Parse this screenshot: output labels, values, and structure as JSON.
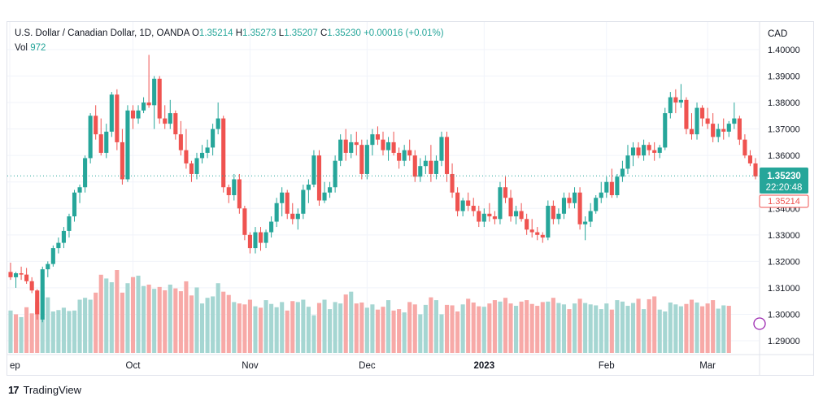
{
  "legend": {
    "symbol": "U.S. Dollar / Canadian Dollar, 1D, OANDA",
    "o_label": "O",
    "o_value": "1.35214",
    "h_label": "H",
    "h_value": "1.35273",
    "l_label": "L",
    "l_value": "1.35207",
    "c_label": "C",
    "c_value": "1.35230",
    "change": "+0.00016 (+0.01%)",
    "vol_label": "Vol",
    "vol_value": "972"
  },
  "axis": {
    "currency": "CAD",
    "price_ticks": [
      "1.40000",
      "1.39000",
      "1.38000",
      "1.37000",
      "1.36000",
      "1.35000",
      "1.34000",
      "1.33000",
      "1.32000",
      "1.31000",
      "1.30000",
      "1.29000"
    ],
    "time_labels": [
      "ep",
      "Oct",
      "Nov",
      "Dec",
      "2023",
      "Feb",
      "Mar"
    ]
  },
  "badges": {
    "last_price": "1.35230",
    "countdown": "22:20:48",
    "open_price": "1.35214"
  },
  "footer": {
    "brand": "TradingView",
    "logo_text": "17"
  },
  "colors": {
    "up": "#26a69a",
    "down": "#ef5350",
    "vol_up": "#a5d6d2",
    "vol_down": "#f7a9a7",
    "grid": "#f0f3fa"
  },
  "chart_data": {
    "type": "candlestick",
    "symbol": "USDCAD",
    "interval": "1D",
    "ylim": [
      1.285,
      1.405
    ],
    "y_ticks": [
      1.4,
      1.39,
      1.38,
      1.37,
      1.36,
      1.35,
      1.34,
      1.33,
      1.32,
      1.31,
      1.3,
      1.29
    ],
    "x_ticks": [
      {
        "label": "ep",
        "index": 0
      },
      {
        "label": "Oct",
        "index": 23
      },
      {
        "label": "Nov",
        "index": 45
      },
      {
        "label": "Dec",
        "index": 67
      },
      {
        "label": "2023",
        "index": 89
      },
      {
        "label": "Feb",
        "index": 112
      },
      {
        "label": "Mar",
        "index": 131
      }
    ],
    "last_close": 1.3523,
    "open_today": 1.35214,
    "candles": [
      [
        1.316,
        1.3195,
        1.313,
        1.314
      ],
      [
        1.314,
        1.316,
        1.31,
        1.3155
      ],
      [
        1.3155,
        1.318,
        1.313,
        1.315
      ],
      [
        1.315,
        1.3175,
        1.3115,
        1.3125
      ],
      [
        1.3125,
        1.314,
        1.308,
        1.309
      ],
      [
        1.309,
        1.3095,
        1.298,
        1.3
      ],
      [
        1.298,
        1.318,
        1.297,
        1.317
      ],
      [
        1.317,
        1.32,
        1.314,
        1.319
      ],
      [
        1.319,
        1.326,
        1.318,
        1.325
      ],
      [
        1.325,
        1.329,
        1.323,
        1.327
      ],
      [
        1.327,
        1.333,
        1.325,
        1.3315
      ],
      [
        1.3315,
        1.338,
        1.329,
        1.337
      ],
      [
        1.337,
        1.347,
        1.335,
        1.346
      ],
      [
        1.346,
        1.349,
        1.342,
        1.348
      ],
      [
        1.348,
        1.36,
        1.346,
        1.359
      ],
      [
        1.359,
        1.376,
        1.357,
        1.375
      ],
      [
        1.375,
        1.379,
        1.366,
        1.368
      ],
      [
        1.368,
        1.374,
        1.36,
        1.361
      ],
      [
        1.361,
        1.372,
        1.359,
        1.369
      ],
      [
        1.369,
        1.384,
        1.367,
        1.383
      ],
      [
        1.383,
        1.385,
        1.362,
        1.365
      ],
      [
        1.365,
        1.37,
        1.349,
        1.351
      ],
      [
        1.351,
        1.379,
        1.35,
        1.377
      ],
      [
        1.377,
        1.379,
        1.37,
        1.374
      ],
      [
        1.374,
        1.379,
        1.372,
        1.377
      ],
      [
        1.377,
        1.382,
        1.376,
        1.38
      ],
      [
        1.38,
        1.398,
        1.378,
        1.379
      ],
      [
        1.379,
        1.39,
        1.37,
        1.389
      ],
      [
        1.389,
        1.39,
        1.372,
        1.374
      ],
      [
        1.374,
        1.379,
        1.37,
        1.372
      ],
      [
        1.372,
        1.381,
        1.37,
        1.376
      ],
      [
        1.376,
        1.377,
        1.366,
        1.368
      ],
      [
        1.368,
        1.373,
        1.36,
        1.362
      ],
      [
        1.362,
        1.37,
        1.355,
        1.357
      ],
      [
        1.357,
        1.358,
        1.35,
        1.353
      ],
      [
        1.353,
        1.361,
        1.351,
        1.359
      ],
      [
        1.359,
        1.364,
        1.357,
        1.361
      ],
      [
        1.361,
        1.366,
        1.359,
        1.363
      ],
      [
        1.363,
        1.372,
        1.36,
        1.37
      ],
      [
        1.37,
        1.38,
        1.368,
        1.374
      ],
      [
        1.374,
        1.375,
        1.346,
        1.348
      ],
      [
        1.348,
        1.349,
        1.342,
        1.345
      ],
      [
        1.345,
        1.353,
        1.343,
        1.351
      ],
      [
        1.351,
        1.353,
        1.338,
        1.34
      ],
      [
        1.34,
        1.341,
        1.328,
        1.33
      ],
      [
        1.33,
        1.331,
        1.323,
        1.325
      ],
      [
        1.325,
        1.333,
        1.323,
        1.331
      ],
      [
        1.331,
        1.333,
        1.324,
        1.327
      ],
      [
        1.327,
        1.332,
        1.325,
        1.331
      ],
      [
        1.331,
        1.337,
        1.329,
        1.335
      ],
      [
        1.335,
        1.344,
        1.333,
        1.342
      ],
      [
        1.342,
        1.348,
        1.337,
        1.346
      ],
      [
        1.346,
        1.347,
        1.336,
        1.338
      ],
      [
        1.338,
        1.342,
        1.334,
        1.336
      ],
      [
        1.336,
        1.34,
        1.332,
        1.338
      ],
      [
        1.338,
        1.349,
        1.336,
        1.347
      ],
      [
        1.347,
        1.351,
        1.342,
        1.349
      ],
      [
        1.349,
        1.362,
        1.348,
        1.36
      ],
      [
        1.36,
        1.362,
        1.341,
        1.343
      ],
      [
        1.343,
        1.35,
        1.342,
        1.346
      ],
      [
        1.346,
        1.35,
        1.344,
        1.348
      ],
      [
        1.348,
        1.36,
        1.346,
        1.358
      ],
      [
        1.358,
        1.368,
        1.356,
        1.366
      ],
      [
        1.366,
        1.37,
        1.358,
        1.361
      ],
      [
        1.361,
        1.368,
        1.359,
        1.365
      ],
      [
        1.365,
        1.369,
        1.36,
        1.364
      ],
      [
        1.364,
        1.366,
        1.351,
        1.353
      ],
      [
        1.353,
        1.366,
        1.351,
        1.364
      ],
      [
        1.364,
        1.37,
        1.36,
        1.368
      ],
      [
        1.368,
        1.371,
        1.364,
        1.366
      ],
      [
        1.366,
        1.369,
        1.36,
        1.362
      ],
      [
        1.362,
        1.367,
        1.358,
        1.365
      ],
      [
        1.365,
        1.369,
        1.36,
        1.361
      ],
      [
        1.361,
        1.363,
        1.355,
        1.358
      ],
      [
        1.358,
        1.364,
        1.356,
        1.362
      ],
      [
        1.362,
        1.366,
        1.358,
        1.36
      ],
      [
        1.36,
        1.362,
        1.35,
        1.352
      ],
      [
        1.352,
        1.359,
        1.35,
        1.356
      ],
      [
        1.356,
        1.36,
        1.353,
        1.358
      ],
      [
        1.358,
        1.364,
        1.35,
        1.353
      ],
      [
        1.353,
        1.36,
        1.351,
        1.358
      ],
      [
        1.358,
        1.369,
        1.356,
        1.367
      ],
      [
        1.367,
        1.369,
        1.35,
        1.353
      ],
      [
        1.353,
        1.357,
        1.344,
        1.346
      ],
      [
        1.346,
        1.348,
        1.337,
        1.339
      ],
      [
        1.339,
        1.344,
        1.337,
        1.343
      ],
      [
        1.343,
        1.346,
        1.339,
        1.341
      ],
      [
        1.341,
        1.344,
        1.337,
        1.339
      ],
      [
        1.339,
        1.341,
        1.333,
        1.335
      ],
      [
        1.335,
        1.34,
        1.333,
        1.338
      ],
      [
        1.338,
        1.342,
        1.335,
        1.337
      ],
      [
        1.337,
        1.339,
        1.334,
        1.336
      ],
      [
        1.336,
        1.35,
        1.334,
        1.348
      ],
      [
        1.348,
        1.352,
        1.342,
        1.344
      ],
      [
        1.344,
        1.347,
        1.335,
        1.337
      ],
      [
        1.337,
        1.341,
        1.334,
        1.339
      ],
      [
        1.339,
        1.342,
        1.335,
        1.336
      ],
      [
        1.336,
        1.338,
        1.33,
        1.332
      ],
      [
        1.332,
        1.336,
        1.329,
        1.331
      ],
      [
        1.331,
        1.333,
        1.328,
        1.33
      ],
      [
        1.33,
        1.331,
        1.327,
        1.329
      ],
      [
        1.329,
        1.343,
        1.328,
        1.341
      ],
      [
        1.341,
        1.343,
        1.334,
        1.336
      ],
      [
        1.336,
        1.34,
        1.334,
        1.338
      ],
      [
        1.338,
        1.346,
        1.336,
        1.344
      ],
      [
        1.344,
        1.346,
        1.34,
        1.342
      ],
      [
        1.342,
        1.348,
        1.34,
        1.346
      ],
      [
        1.346,
        1.348,
        1.332,
        1.334
      ],
      [
        1.334,
        1.337,
        1.328,
        1.335
      ],
      [
        1.335,
        1.342,
        1.333,
        1.339
      ],
      [
        1.339,
        1.345,
        1.338,
        1.344
      ],
      [
        1.344,
        1.35,
        1.342,
        1.346
      ],
      [
        1.346,
        1.352,
        1.344,
        1.35
      ],
      [
        1.35,
        1.355,
        1.344,
        1.345
      ],
      [
        1.345,
        1.353,
        1.344,
        1.352
      ],
      [
        1.352,
        1.358,
        1.35,
        1.355
      ],
      [
        1.355,
        1.364,
        1.353,
        1.36
      ],
      [
        1.36,
        1.365,
        1.356,
        1.363
      ],
      [
        1.363,
        1.365,
        1.359,
        1.36
      ],
      [
        1.36,
        1.366,
        1.358,
        1.364
      ],
      [
        1.364,
        1.365,
        1.36,
        1.362
      ],
      [
        1.362,
        1.365,
        1.358,
        1.361
      ],
      [
        1.361,
        1.364,
        1.359,
        1.363
      ],
      [
        1.363,
        1.378,
        1.362,
        1.376
      ],
      [
        1.376,
        1.384,
        1.374,
        1.382
      ],
      [
        1.382,
        1.385,
        1.376,
        1.38
      ],
      [
        1.38,
        1.387,
        1.378,
        1.381
      ],
      [
        1.381,
        1.382,
        1.368,
        1.37
      ],
      [
        1.37,
        1.376,
        1.366,
        1.368
      ],
      [
        1.368,
        1.38,
        1.366,
        1.378
      ],
      [
        1.378,
        1.379,
        1.371,
        1.374
      ],
      [
        1.374,
        1.378,
        1.37,
        1.372
      ],
      [
        1.372,
        1.376,
        1.365,
        1.367
      ],
      [
        1.367,
        1.372,
        1.365,
        1.37
      ],
      [
        1.37,
        1.374,
        1.366,
        1.369
      ],
      [
        1.369,
        1.373,
        1.367,
        1.372
      ],
      [
        1.372,
        1.38,
        1.37,
        1.374
      ],
      [
        1.374,
        1.375,
        1.364,
        1.366
      ],
      [
        1.366,
        1.368,
        1.359,
        1.36
      ],
      [
        1.36,
        1.362,
        1.356,
        1.357
      ],
      [
        1.357,
        1.359,
        1.351,
        1.3521
      ]
    ],
    "volumes": [
      9000,
      8200,
      7600,
      9700,
      8400,
      10800,
      13200,
      11800,
      8800,
      9100,
      9600,
      8900,
      9000,
      11300,
      11700,
      11300,
      12800,
      16600,
      15800,
      15000,
      17600,
      12800,
      14800,
      16100,
      16400,
      14200,
      14500,
      13600,
      14000,
      13300,
      14500,
      13700,
      13100,
      15200,
      12200,
      13900,
      10500,
      11700,
      12000,
      14800,
      13000,
      12300,
      10800,
      10500,
      10300,
      11300,
      9900,
      9600,
      11200,
      10400,
      9700,
      10800,
      9000,
      11000,
      10800,
      11300,
      9800,
      8000,
      10600,
      11300,
      9300,
      10800,
      10500,
      12400,
      13000,
      10500,
      10700,
      9600,
      10300,
      9200,
      9800,
      11200,
      9000,
      9300,
      8600,
      10800,
      10300,
      8200,
      10200,
      11800,
      11200,
      8200,
      10200,
      10100,
      8800,
      10300,
      11500,
      10700,
      9900,
      9800,
      10500,
      11200,
      10900,
      11700,
      10500,
      10000,
      10900,
      11200,
      10400,
      10000,
      10800,
      10900,
      11700,
      10600,
      10300,
      9300,
      10500,
      11500,
      10600,
      10300,
      10100,
      9300,
      10500,
      9200,
      11200,
      10900,
      10000,
      10600,
      11500,
      9300,
      11400,
      12000,
      9200,
      8800,
      10700,
      10300,
      9900,
      10400,
      11300,
      10700,
      9900,
      10500,
      11200,
      9400,
      10100,
      10000
    ],
    "volume_up": [
      true,
      false,
      true,
      false,
      false,
      false,
      true,
      true,
      true,
      true,
      true,
      true,
      true,
      true,
      true,
      true,
      false,
      false,
      true,
      true,
      false,
      false,
      true,
      false,
      true,
      true,
      false,
      true,
      false,
      false,
      true,
      false,
      false,
      false,
      false,
      true,
      true,
      true,
      true,
      true,
      false,
      false,
      true,
      false,
      false,
      false,
      true,
      false,
      true,
      true,
      true,
      true,
      false,
      false,
      true,
      true,
      true,
      true,
      false,
      true,
      true,
      true,
      true,
      false,
      true,
      false,
      false,
      true,
      true,
      false,
      false,
      true,
      false,
      false,
      true,
      false,
      false,
      true,
      true,
      false,
      true,
      true,
      false,
      false,
      false,
      true,
      false,
      false,
      false,
      true,
      false,
      false,
      true,
      false,
      false,
      true,
      false,
      false,
      false,
      false,
      false,
      true,
      false,
      true,
      true,
      false,
      true,
      false,
      true,
      true,
      true,
      true,
      true,
      false,
      true,
      true,
      true,
      true,
      false,
      true,
      false,
      false,
      true,
      true,
      true,
      true,
      true,
      false,
      false,
      true,
      false,
      false,
      false,
      true,
      true,
      false,
      false,
      false,
      false
    ]
  }
}
